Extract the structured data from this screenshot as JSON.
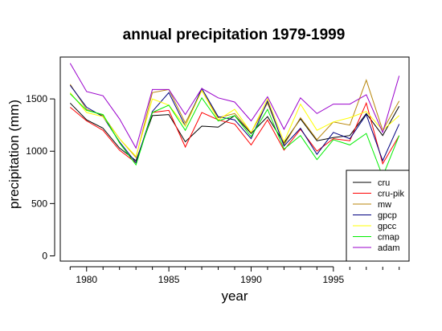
{
  "chart_data": {
    "type": "line",
    "title": "annual precipitation 1979-1999",
    "xlabel": "year",
    "ylabel": "precipitation (mm)",
    "x": [
      1979,
      1980,
      1981,
      1982,
      1983,
      1984,
      1985,
      1986,
      1987,
      1988,
      1989,
      1990,
      1991,
      1992,
      1993,
      1994,
      1995,
      1996,
      1997,
      1998,
      1999
    ],
    "xlim": [
      1978.4,
      1999.6
    ],
    "ylim": [
      -50,
      1900
    ],
    "xticks": [
      1980,
      1985,
      1990,
      1995
    ],
    "yticks": [
      0,
      500,
      1000,
      1500
    ],
    "grid": false,
    "legend_position": "bottom-right",
    "series": [
      {
        "name": "cru",
        "color": "#000000",
        "values": [
          1460,
          1300,
          1220,
          1030,
          910,
          1340,
          1350,
          1090,
          1240,
          1230,
          1340,
          1170,
          1330,
          1080,
          1310,
          1100,
          1130,
          1150,
          1360,
          1150,
          1430
        ]
      },
      {
        "name": "cru-pik",
        "color": "#ff0000",
        "values": [
          1420,
          1290,
          1200,
          1010,
          890,
          1370,
          1390,
          1040,
          1370,
          1300,
          1260,
          1060,
          1300,
          1010,
          1210,
          1000,
          1120,
          1100,
          1460,
          880,
          1150
        ]
      },
      {
        "name": "mw",
        "color": "#b8860b",
        "values": [
          1640,
          1400,
          1340,
          1120,
          940,
          1560,
          1590,
          1270,
          1580,
          1320,
          1360,
          1180,
          1460,
          1060,
          1320,
          1110,
          1280,
          1250,
          1680,
          1200,
          1480
        ]
      },
      {
        "name": "gpcp",
        "color": "#000080",
        "values": [
          1630,
          1420,
          1330,
          1090,
          890,
          1380,
          1560,
          1240,
          1600,
          1330,
          1300,
          1120,
          1480,
          1050,
          1220,
          970,
          1180,
          1120,
          1350,
          910,
          1260
        ]
      },
      {
        "name": "gpcc",
        "color": "#ffff00",
        "values": [
          1560,
          1370,
          1330,
          1120,
          950,
          1500,
          1440,
          1240,
          1580,
          1300,
          1400,
          1180,
          1500,
          1090,
          1450,
          1200,
          1280,
          1320,
          1380,
          1200,
          1340
        ]
      },
      {
        "name": "cmap",
        "color": "#00ee00",
        "values": [
          1550,
          1390,
          1350,
          1080,
          870,
          1370,
          1440,
          1200,
          1510,
          1290,
          1340,
          1140,
          1400,
          1020,
          1150,
          920,
          1110,
          1060,
          1170,
          760,
          1150
        ]
      },
      {
        "name": "adam",
        "color": "#9900cc",
        "values": [
          1840,
          1570,
          1530,
          1310,
          1030,
          1590,
          1590,
          1350,
          1600,
          1510,
          1470,
          1290,
          1520,
          1210,
          1510,
          1360,
          1450,
          1450,
          1540,
          1180,
          1720
        ]
      }
    ]
  }
}
